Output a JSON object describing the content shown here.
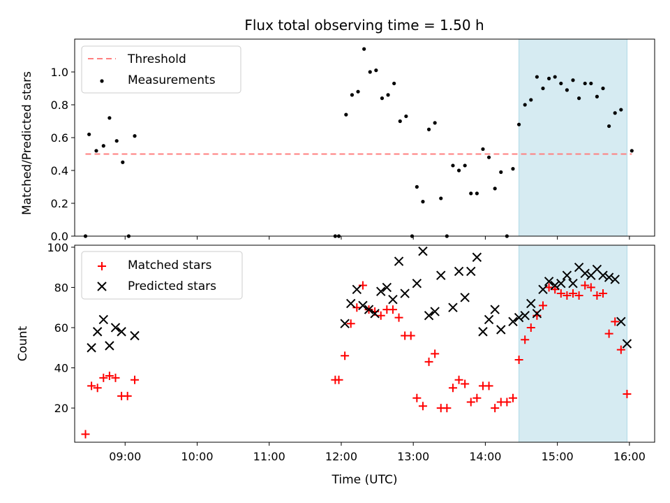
{
  "figure_title": "Flux total observing time = 1.50 h",
  "colors": {
    "threshold": "#ff7f7f",
    "measurement": "#000000",
    "matched": "#ff0000",
    "predicted": "#000000",
    "highlight": "#add8e6"
  },
  "chart_data": [
    {
      "type": "scatter",
      "title": "Flux total observing time = 1.50 h",
      "xlabel": "",
      "ylabel": "Matched/Predicted stars",
      "xlim": [
        "08:18",
        "16:21"
      ],
      "ylim": [
        0,
        1.2
      ],
      "yticks": [
        0.0,
        0.2,
        0.4,
        0.6,
        0.8,
        1.0
      ],
      "ytick_labels": [
        "0.0",
        "0.2",
        "0.4",
        "0.6",
        "0.8",
        "1.0"
      ],
      "grid": false,
      "legend": "top-left",
      "highlight_region": [
        "14:28",
        "15:58"
      ],
      "threshold": {
        "name": "Threshold",
        "value": 0.5,
        "x": [
          "08:27",
          "16:02"
        ],
        "style": "dashed"
      },
      "series": [
        {
          "name": "Measurements",
          "marker": "dot",
          "points": [
            [
              "08:27",
              0.0
            ],
            [
              "08:30",
              0.62
            ],
            [
              "08:36",
              0.52
            ],
            [
              "08:42",
              0.55
            ],
            [
              "08:47",
              0.72
            ],
            [
              "08:53",
              0.58
            ],
            [
              "08:58",
              0.45
            ],
            [
              "09:03",
              0.0
            ],
            [
              "09:08",
              0.61
            ],
            [
              "11:55",
              0.0
            ],
            [
              "11:58",
              0.0
            ],
            [
              "12:04",
              0.74
            ],
            [
              "12:09",
              0.86
            ],
            [
              "12:14",
              0.88
            ],
            [
              "12:19",
              1.14
            ],
            [
              "12:24",
              1.0
            ],
            [
              "12:29",
              1.01
            ],
            [
              "12:34",
              0.84
            ],
            [
              "12:39",
              0.86
            ],
            [
              "12:44",
              0.93
            ],
            [
              "12:49",
              0.7
            ],
            [
              "12:54",
              0.73
            ],
            [
              "12:59",
              0.0
            ],
            [
              "13:03",
              0.3
            ],
            [
              "13:08",
              0.21
            ],
            [
              "13:13",
              0.65
            ],
            [
              "13:18",
              0.69
            ],
            [
              "13:23",
              0.23
            ],
            [
              "13:28",
              0.0
            ],
            [
              "13:33",
              0.43
            ],
            [
              "13:38",
              0.4
            ],
            [
              "13:43",
              0.43
            ],
            [
              "13:48",
              0.26
            ],
            [
              "13:53",
              0.26
            ],
            [
              "13:58",
              0.53
            ],
            [
              "14:03",
              0.48
            ],
            [
              "14:08",
              0.29
            ],
            [
              "14:13",
              0.39
            ],
            [
              "14:18",
              0.0
            ],
            [
              "14:23",
              0.41
            ],
            [
              "14:28",
              0.68
            ],
            [
              "14:33",
              0.8
            ],
            [
              "14:38",
              0.83
            ],
            [
              "14:43",
              0.97
            ],
            [
              "14:48",
              0.9
            ],
            [
              "14:53",
              0.96
            ],
            [
              "14:58",
              0.97
            ],
            [
              "15:03",
              0.93
            ],
            [
              "15:08",
              0.89
            ],
            [
              "15:13",
              0.95
            ],
            [
              "15:18",
              0.84
            ],
            [
              "15:23",
              0.93
            ],
            [
              "15:28",
              0.93
            ],
            [
              "15:33",
              0.85
            ],
            [
              "15:38",
              0.9
            ],
            [
              "15:43",
              0.67
            ],
            [
              "15:48",
              0.75
            ],
            [
              "15:53",
              0.77
            ],
            [
              "16:02",
              0.52
            ]
          ]
        }
      ]
    },
    {
      "type": "scatter",
      "title": "",
      "xlabel": "Time (UTC)",
      "ylabel": "Count",
      "xlim": [
        "08:18",
        "16:21"
      ],
      "ylim": [
        3,
        101
      ],
      "xticks": [
        "09:00",
        "10:00",
        "11:00",
        "12:00",
        "13:00",
        "14:00",
        "15:00",
        "16:00"
      ],
      "yticks": [
        20,
        40,
        60,
        80,
        100
      ],
      "ytick_labels": [
        "20",
        "40",
        "60",
        "80",
        "100"
      ],
      "grid": false,
      "legend": "top-left",
      "highlight_region": [
        "14:28",
        "15:58"
      ],
      "series": [
        {
          "name": "Matched stars",
          "marker": "plus",
          "points": [
            [
              "08:27",
              7
            ],
            [
              "08:32",
              31
            ],
            [
              "08:37",
              30
            ],
            [
              "08:42",
              35
            ],
            [
              "08:47",
              36
            ],
            [
              "08:52",
              35
            ],
            [
              "08:57",
              26
            ],
            [
              "09:02",
              26
            ],
            [
              "09:08",
              34
            ],
            [
              "11:55",
              34
            ],
            [
              "11:58",
              34
            ],
            [
              "12:03",
              46
            ],
            [
              "12:08",
              62
            ],
            [
              "12:13",
              70
            ],
            [
              "12:18",
              81
            ],
            [
              "12:23",
              69
            ],
            [
              "12:28",
              68
            ],
            [
              "12:33",
              66
            ],
            [
              "12:38",
              69
            ],
            [
              "12:43",
              69
            ],
            [
              "12:48",
              65
            ],
            [
              "12:53",
              56
            ],
            [
              "12:58",
              56
            ],
            [
              "13:03",
              25
            ],
            [
              "13:08",
              21
            ],
            [
              "13:13",
              43
            ],
            [
              "13:18",
              47
            ],
            [
              "13:23",
              20
            ],
            [
              "13:28",
              20
            ],
            [
              "13:33",
              30
            ],
            [
              "13:38",
              34
            ],
            [
              "13:43",
              32
            ],
            [
              "13:48",
              23
            ],
            [
              "13:53",
              25
            ],
            [
              "13:58",
              31
            ],
            [
              "14:03",
              31
            ],
            [
              "14:08",
              20
            ],
            [
              "14:13",
              23
            ],
            [
              "14:18",
              23
            ],
            [
              "14:23",
              25
            ],
            [
              "14:28",
              44
            ],
            [
              "14:33",
              54
            ],
            [
              "14:38",
              60
            ],
            [
              "14:43",
              66
            ],
            [
              "14:48",
              71
            ],
            [
              "14:53",
              80
            ],
            [
              "14:58",
              79
            ],
            [
              "15:03",
              77
            ],
            [
              "15:08",
              76
            ],
            [
              "15:13",
              77
            ],
            [
              "15:18",
              76
            ],
            [
              "15:23",
              81
            ],
            [
              "15:28",
              80
            ],
            [
              "15:33",
              76
            ],
            [
              "15:38",
              77
            ],
            [
              "15:43",
              57
            ],
            [
              "15:48",
              63
            ],
            [
              "15:53",
              49
            ],
            [
              "15:58",
              27
            ]
          ]
        },
        {
          "name": "Predicted stars",
          "marker": "x",
          "points": [
            [
              "08:32",
              50
            ],
            [
              "08:37",
              58
            ],
            [
              "08:42",
              64
            ],
            [
              "08:47",
              51
            ],
            [
              "08:52",
              60
            ],
            [
              "08:57",
              58
            ],
            [
              "09:08",
              56
            ],
            [
              "12:03",
              62
            ],
            [
              "12:08",
              72
            ],
            [
              "12:13",
              79
            ],
            [
              "12:18",
              71
            ],
            [
              "12:23",
              69
            ],
            [
              "12:28",
              67
            ],
            [
              "12:33",
              78
            ],
            [
              "12:38",
              80
            ],
            [
              "12:43",
              74
            ],
            [
              "12:48",
              93
            ],
            [
              "12:53",
              77
            ],
            [
              "13:03",
              82
            ],
            [
              "13:08",
              98
            ],
            [
              "13:13",
              66
            ],
            [
              "13:18",
              68
            ],
            [
              "13:23",
              86
            ],
            [
              "13:33",
              70
            ],
            [
              "13:38",
              88
            ],
            [
              "13:43",
              75
            ],
            [
              "13:48",
              88
            ],
            [
              "13:53",
              95
            ],
            [
              "13:58",
              58
            ],
            [
              "14:03",
              64
            ],
            [
              "14:08",
              69
            ],
            [
              "14:13",
              59
            ],
            [
              "14:23",
              63
            ],
            [
              "14:28",
              65
            ],
            [
              "14:33",
              66
            ],
            [
              "14:38",
              72
            ],
            [
              "14:43",
              67
            ],
            [
              "14:48",
              79
            ],
            [
              "14:53",
              83
            ],
            [
              "14:58",
              81
            ],
            [
              "15:03",
              82
            ],
            [
              "15:08",
              86
            ],
            [
              "15:13",
              82
            ],
            [
              "15:18",
              90
            ],
            [
              "15:23",
              87
            ],
            [
              "15:28",
              86
            ],
            [
              "15:33",
              89
            ],
            [
              "15:38",
              86
            ],
            [
              "15:43",
              85
            ],
            [
              "15:48",
              84
            ],
            [
              "15:53",
              63
            ],
            [
              "15:58",
              52
            ]
          ]
        }
      ]
    }
  ]
}
